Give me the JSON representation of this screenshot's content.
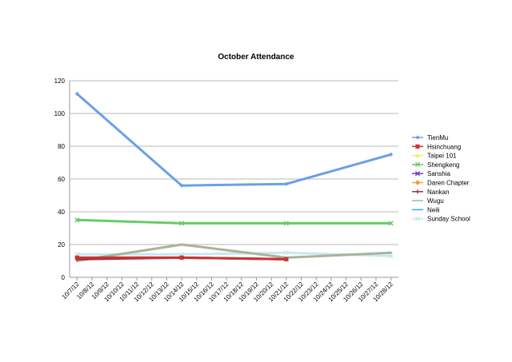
{
  "chart_data": {
    "type": "line",
    "title": "October Attendance",
    "xlabel": "",
    "ylabel": "",
    "ylim": [
      0,
      120
    ],
    "yticks": [
      0,
      20,
      40,
      60,
      80,
      100,
      120
    ],
    "grid": true,
    "legend_position": "right",
    "categories": [
      "10/7/12",
      "10/8/12",
      "10/9/12",
      "10/10/12",
      "10/11/12",
      "10/12/12",
      "10/13/12",
      "10/14/12",
      "10/15/12",
      "10/16/12",
      "10/17/12",
      "10/18/12",
      "10/19/12",
      "10/20/12",
      "10/21/12",
      "10/22/12",
      "10/23/12",
      "10/24/12",
      "10/25/12",
      "10/26/12",
      "10/27/12",
      "10/28/12"
    ],
    "series": [
      {
        "name": "TienMu",
        "color": "#6aa0e6",
        "marker": "diamond",
        "values": {
          "10/7/12": 112,
          "10/14/12": 56,
          "10/21/12": 57,
          "10/28/12": 75
        }
      },
      {
        "name": "Hsinchuang",
        "color": "#cc3333",
        "marker": "square",
        "values": {
          "10/7/12": 12,
          "10/14/12": 12,
          "10/21/12": 11
        }
      },
      {
        "name": "Taipei 101",
        "color": "#f5e96a",
        "marker": "triangle",
        "values": {}
      },
      {
        "name": "Shengkeng",
        "color": "#66cc66",
        "marker": "x",
        "values": {
          "10/7/12": 35,
          "10/14/12": 33,
          "10/21/12": 33,
          "10/28/12": 33
        }
      },
      {
        "name": "Sanshia",
        "color": "#7733cc",
        "marker": "x",
        "values": {}
      },
      {
        "name": "Daren Chapter",
        "color": "#f0a040",
        "marker": "circle",
        "values": {}
      },
      {
        "name": "Nankan",
        "color": "#993344",
        "marker": "plus",
        "values": {
          "10/7/12": 11,
          "10/14/12": 12,
          "10/21/12": 11
        }
      },
      {
        "name": "Wugu",
        "color": "#aab29a",
        "marker": "none",
        "values": {
          "10/7/12": 10,
          "10/14/12": 20,
          "10/21/12": 12,
          "10/28/12": 15
        }
      },
      {
        "name": "Neili",
        "color": "#33aadd",
        "marker": "none",
        "values": {}
      },
      {
        "name": "Sunday School",
        "color": "#c6e8f2",
        "marker": "x",
        "values": {
          "10/7/12": 14,
          "10/14/12": 14,
          "10/21/12": 15,
          "10/28/12": 13
        }
      }
    ]
  }
}
